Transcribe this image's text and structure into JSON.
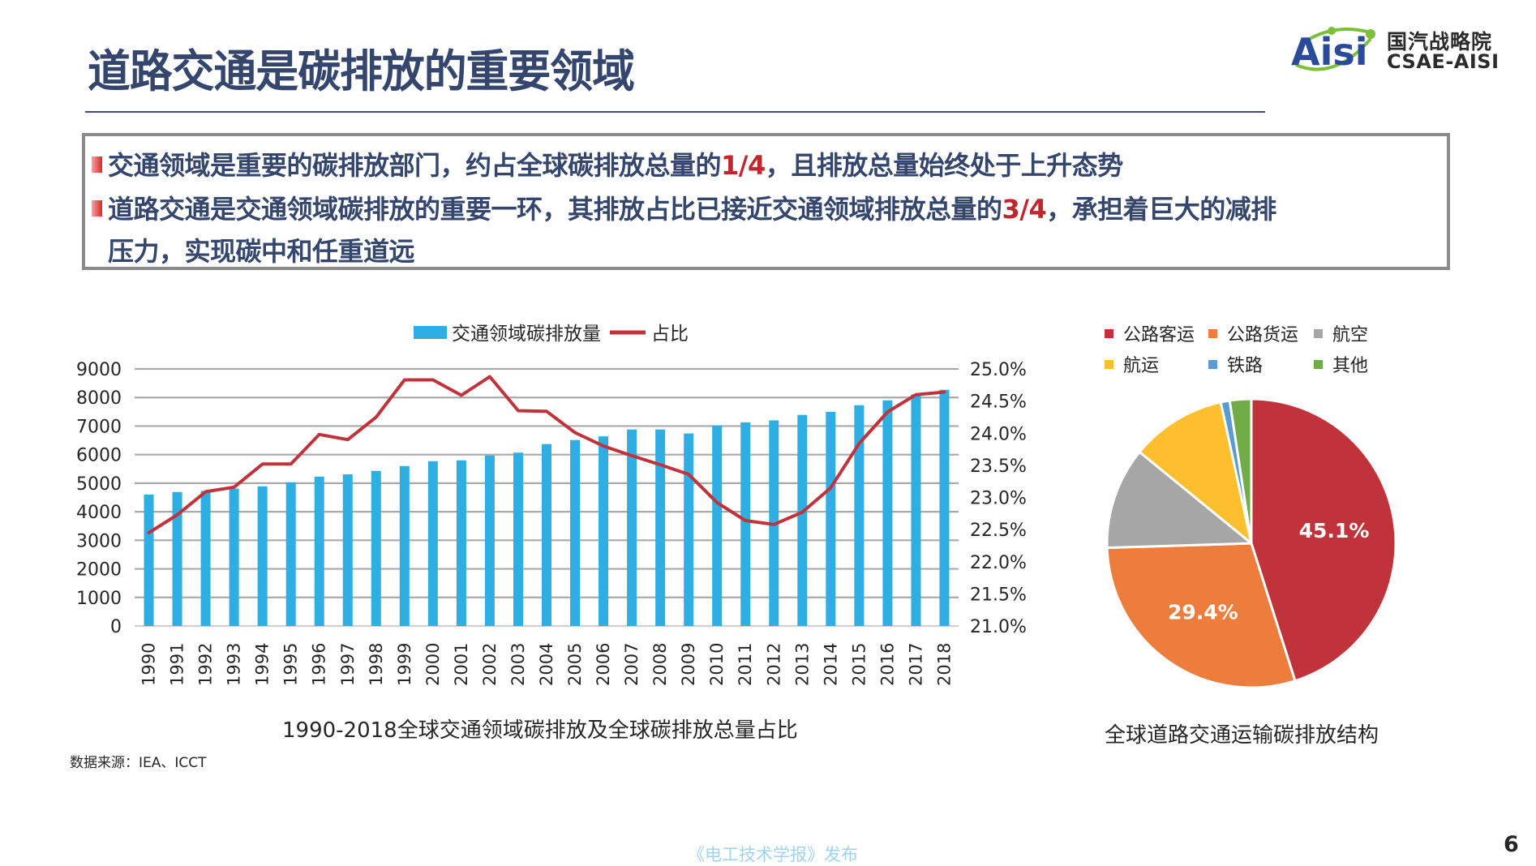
{
  "header": {
    "title": "道路交通是碳排放的重要领域",
    "logo": {
      "mark_text": "Aisi",
      "name_cn": "国汽战略院",
      "name_en": "CSAE-AISI"
    }
  },
  "bullets": [
    {
      "icon": "red-square-bullet-icon",
      "before": "交通领域是重要的碳排放部门，约占全球碳排放总量的",
      "highlight": "1/4",
      "after": "，且排放总量始终处于上升态势"
    },
    {
      "icon": "red-square-bullet-icon",
      "before": "道路交通是交通领域碳排放的重要一环，其排放占比已接近交通领域排放总量的",
      "highlight": "3/4",
      "after": "，承担着巨大的减排",
      "continuation": "压力，实现碳中和任重道远"
    }
  ],
  "colors": {
    "title": "#34466e",
    "highlight": "#c0272d",
    "bar": "#2eaee2",
    "line": "#c0333a",
    "grid": "#aaaaaa"
  },
  "chart_data": [
    {
      "type": "bar+line",
      "title": "1990-2018全球交通领域碳排放及全球碳排放总量占比",
      "legend": [
        "交通领域碳排放量",
        "占比"
      ],
      "legend_position": "top",
      "grid": true,
      "x": [
        "1990",
        "1991",
        "1992",
        "1993",
        "1994",
        "1995",
        "1996",
        "1997",
        "1998",
        "1999",
        "2000",
        "2001",
        "2002",
        "2003",
        "2004",
        "2005",
        "2006",
        "2007",
        "2008",
        "2009",
        "2010",
        "2011",
        "2012",
        "2013",
        "2014",
        "2015",
        "2016",
        "2017",
        "2018"
      ],
      "y_left": {
        "ylim": [
          0,
          9000
        ],
        "ticks": [
          "0",
          "1000",
          "2000",
          "3000",
          "4000",
          "5000",
          "6000",
          "7000",
          "8000",
          "9000"
        ]
      },
      "y_right": {
        "ylim": [
          21.0,
          25.0
        ],
        "ticks": [
          "21.0%",
          "21.5%",
          "22.0%",
          "22.5%",
          "23.0%",
          "23.5%",
          "24.0%",
          "24.5%",
          "25.0%"
        ]
      },
      "series": [
        {
          "name": "交通领域碳排放量",
          "type": "bar",
          "axis": "left",
          "values": [
            4600,
            4690,
            4730,
            4810,
            4890,
            5030,
            5230,
            5310,
            5430,
            5600,
            5770,
            5800,
            5970,
            6070,
            6370,
            6510,
            6640,
            6880,
            6880,
            6740,
            7020,
            7130,
            7200,
            7390,
            7500,
            7730,
            7900,
            8110,
            8270
          ]
        },
        {
          "name": "占比",
          "type": "line",
          "axis": "right",
          "unit": "%",
          "values": [
            22.45,
            22.73,
            23.09,
            23.16,
            23.52,
            23.52,
            23.98,
            23.9,
            24.25,
            24.83,
            24.83,
            24.59,
            24.88,
            24.35,
            24.34,
            24.01,
            23.8,
            23.65,
            23.51,
            23.36,
            22.92,
            22.64,
            22.58,
            22.77,
            23.15,
            23.84,
            24.33,
            24.6,
            24.64
          ]
        }
      ],
      "source": "数据来源：IEA、ICCT"
    },
    {
      "type": "pie",
      "title": "全球道路交通运输碳排放结构",
      "legend_position": "top",
      "slices": [
        {
          "label": "公路客运",
          "value": 45.1,
          "color": "#c0333a",
          "data_label": "45.1%"
        },
        {
          "label": "公路货运",
          "value": 29.4,
          "color": "#ed7d3d",
          "data_label": "29.4%"
        },
        {
          "label": "航空",
          "value": 11.4,
          "color": "#a6a6a6",
          "data_label": ""
        },
        {
          "label": "航运",
          "value": 10.7,
          "color": "#fdbf2d",
          "data_label": ""
        },
        {
          "label": "铁路",
          "value": 1.0,
          "color": "#5b9bd5",
          "data_label": ""
        },
        {
          "label": "其他",
          "value": 2.4,
          "color": "#70ad47",
          "data_label": ""
        }
      ]
    }
  ],
  "footer": {
    "publisher": "《电工技术学报》发布",
    "page_number": "6"
  }
}
